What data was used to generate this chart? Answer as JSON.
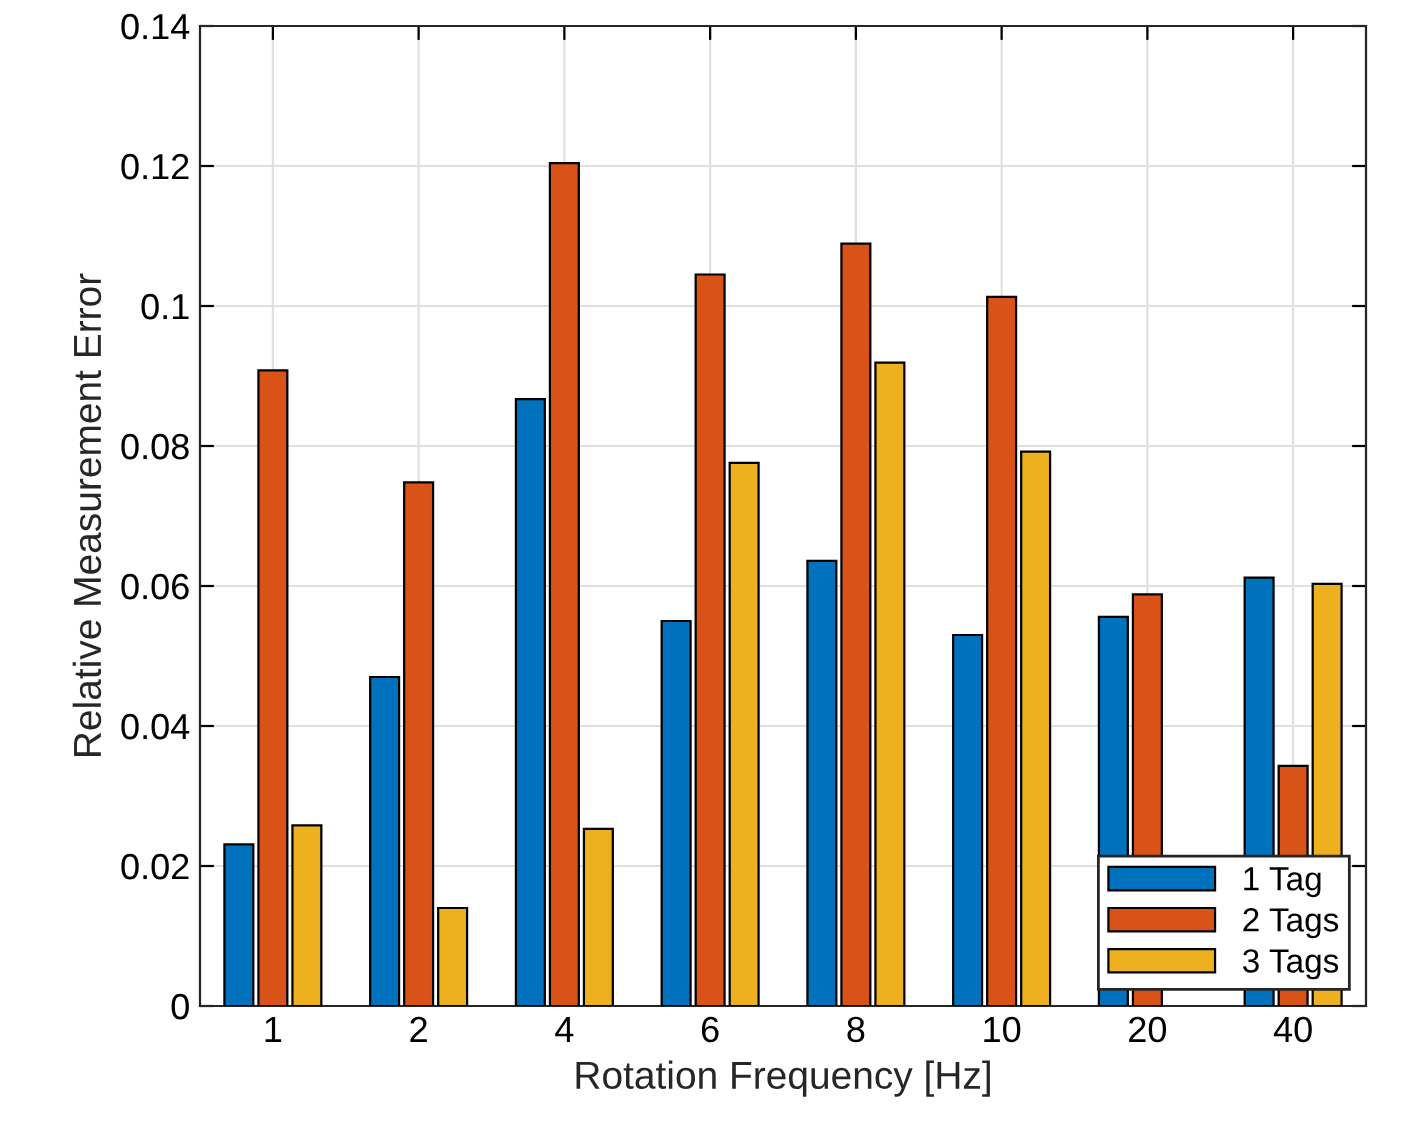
{
  "chart_data": {
    "type": "bar",
    "xlabel": "Rotation Frequency [Hz]",
    "ylabel": "Relative Measurement Error",
    "categories": [
      "1",
      "2",
      "4",
      "6",
      "8",
      "10",
      "20",
      "40"
    ],
    "series": [
      {
        "name": "1 Tag",
        "color": "#0072bd",
        "values": [
          0.0231,
          0.047,
          0.0867,
          0.055,
          0.0636,
          0.053,
          0.0556,
          0.0612
        ]
      },
      {
        "name": "2 Tags",
        "color": "#d95319",
        "values": [
          0.0908,
          0.0748,
          0.1204,
          0.1045,
          0.1089,
          0.1013,
          0.0588,
          0.0343
        ]
      },
      {
        "name": "3 Tags",
        "color": "#edb120",
        "values": [
          0.0258,
          0.014,
          0.0253,
          0.0776,
          0.0919,
          0.0792,
          null,
          0.0603
        ]
      }
    ],
    "ylim": [
      0,
      0.14
    ],
    "yticks": [
      0,
      0.02,
      0.04,
      0.06,
      0.08,
      0.1,
      0.12,
      0.14
    ],
    "grid": true,
    "legend": "bottom right"
  }
}
